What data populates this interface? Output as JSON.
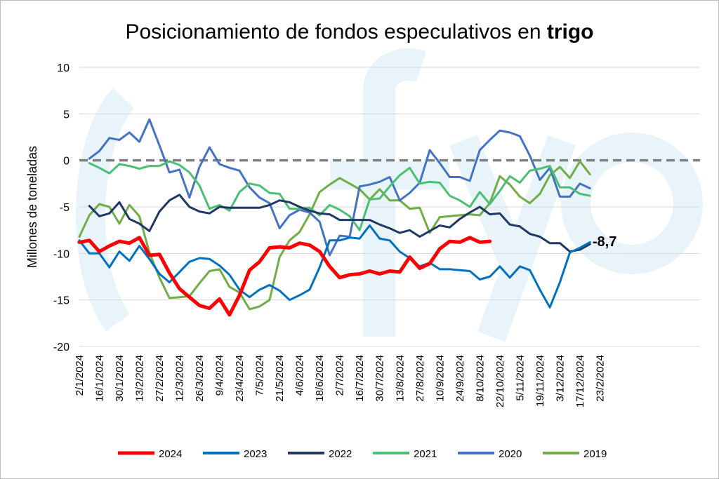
{
  "chart_data": {
    "type": "line",
    "title": "Posicionamiento de fondos especulativos en ",
    "title_bold": "trigo",
    "ylabel": "Millones de toneladas",
    "xlabel": "",
    "ylim": [
      -20,
      10
    ],
    "y_ticks": [
      "10",
      "5",
      "0",
      "-5",
      "-10",
      "-15",
      "-20"
    ],
    "x_ticks": [
      "2/1/2024",
      "16/1/2024",
      "30/1/2024",
      "13/2/2024",
      "27/2/2024",
      "12/3/2024",
      "26/3/2024",
      "9/4/2024",
      "23/4/2024",
      "7/5/2024",
      "21/5/2024",
      "4/6/2024",
      "18/6/2024",
      "2/7/2024",
      "16/7/2024",
      "30/7/2024",
      "13/8/2024",
      "27/8/2024",
      "10/9/2024",
      "24/9/2024",
      "8/10/2024",
      "22/10/2024",
      "5/11/2024",
      "19/11/2024",
      "3/12/2024",
      "17/12/2024",
      "23/2/2024"
    ],
    "x_index_range": [
      0,
      62
    ],
    "zero_line": "dashed",
    "grid": "horizontal",
    "legend_position": "bottom",
    "annotation": {
      "text": "-8,7",
      "x": 50,
      "y": -8.7
    },
    "watermark": "fyo",
    "series": [
      {
        "name": "2024",
        "color": "#ff0000",
        "width": 5,
        "values": [
          -8.8,
          -8.6,
          -9.8,
          -9.2,
          -8.7,
          -8.9,
          -8.3,
          -10.2,
          -10.1,
          -12.1,
          -13.8,
          -14.7,
          -15.6,
          -15.9,
          -14.9,
          -16.6,
          -14.5,
          -11.8,
          -10.9,
          -9.4,
          -9.3,
          -9.4,
          -8.9,
          -9.1,
          -9.8,
          -11.4,
          -12.6,
          -12.3,
          -12.2,
          -11.9,
          -12.2,
          -11.9,
          -12.0,
          -10.4,
          -11.6,
          -11.1,
          -9.5,
          -8.7,
          -8.8,
          -8.3,
          -8.8,
          -8.7
        ]
      },
      {
        "name": "2023",
        "color": "#0070c0",
        "width": 3,
        "values": [
          -8.6,
          -10.0,
          -10.0,
          -11.5,
          -9.8,
          -10.8,
          -9.2,
          -10.6,
          -12.2,
          -13.1,
          -12.0,
          -10.9,
          -10.5,
          -10.6,
          -11.3,
          -12.3,
          -13.9,
          -14.7,
          -13.9,
          -13.4,
          -14.0,
          -15.0,
          -14.5,
          -13.9,
          -11.5,
          -8.6,
          -8.6,
          -8.3,
          -8.4,
          -7.0,
          -8.4,
          -8.6,
          -9.8,
          -10.5,
          -11.4,
          -11.0,
          -11.7,
          -11.7,
          -11.8,
          -11.9,
          -12.8,
          -12.5,
          -11.4,
          -12.6,
          -11.4,
          -11.8,
          -13.9,
          -15.8,
          -13.1,
          -9.9,
          -9.4,
          -8.8
        ]
      },
      {
        "name": "2022",
        "color": "#1f3864",
        "width": 3,
        "values": [
          null,
          -4.9,
          -6.0,
          -5.7,
          -4.5,
          -6.3,
          -6.8,
          -7.6,
          -5.5,
          -4.3,
          -3.7,
          -5.0,
          -5.5,
          -5.7,
          -5.0,
          -5.1,
          -5.1,
          -5.1,
          -5.1,
          -4.8,
          -4.3,
          -4.5,
          -5.0,
          -5.4,
          -5.7,
          -5.8,
          -6.4,
          -6.4,
          -6.4,
          -6.4,
          -6.9,
          -7.3,
          -7.8,
          -7.5,
          -8.2,
          -7.6,
          -7.0,
          -7.2,
          -6.3,
          -5.6,
          -5.0,
          -5.8,
          -5.7,
          -6.9,
          -7.1,
          -7.9,
          -8.2,
          -8.9,
          -8.9,
          -9.8,
          -9.6,
          -9.0
        ]
      },
      {
        "name": "2021",
        "color": "#4bbf73",
        "width": 3,
        "values": [
          null,
          -0.3,
          -0.8,
          -1.4,
          -0.4,
          -0.6,
          -0.9,
          -0.6,
          -0.6,
          -0.1,
          -0.5,
          -1.3,
          -2.7,
          -5.2,
          -4.8,
          -5.4,
          -3.4,
          -2.5,
          -2.7,
          -3.5,
          -3.6,
          -5.2,
          -5.2,
          -5.1,
          -5.9,
          -4.8,
          -5.3,
          -6.0,
          -7.5,
          -4.2,
          -4.1,
          -2.8,
          -1.6,
          -0.8,
          -2.5,
          -2.3,
          -2.4,
          -3.8,
          -4.3,
          -5.0,
          -3.4,
          -4.7,
          -3.3,
          -1.7,
          -2.4,
          -1.1,
          -0.9,
          -0.6,
          -2.9,
          -2.9,
          -3.6,
          -3.8
        ]
      },
      {
        "name": "2020",
        "color": "#4472c4",
        "width": 3,
        "values": [
          null,
          0.2,
          1.0,
          2.4,
          2.2,
          3.0,
          2.0,
          4.4,
          1.6,
          -1.3,
          -1.0,
          -4.0,
          -0.7,
          1.4,
          -0.4,
          -0.8,
          -1.1,
          -2.9,
          -4.0,
          -4.6,
          -7.3,
          -5.9,
          -5.3,
          -5.6,
          -6.6,
          -10.2,
          -8.1,
          -8.2,
          -2.8,
          -2.6,
          -2.3,
          -1.8,
          -4.3,
          -3.5,
          -2.4,
          1.1,
          -0.3,
          -1.8,
          -1.8,
          -2.2,
          1.1,
          2.2,
          3.2,
          3.0,
          2.6,
          0.5,
          -2.1,
          -0.8,
          -3.9,
          -3.9,
          -2.5,
          -3.0
        ]
      },
      {
        "name": "2019",
        "color": "#70ad47",
        "width": 3,
        "values": [
          -8.2,
          -5.9,
          -4.7,
          -5.0,
          -6.8,
          -4.8,
          -6.0,
          -9.9,
          -12.6,
          -14.8,
          -14.7,
          -14.6,
          -13.2,
          -11.9,
          -11.7,
          -13.6,
          -14.2,
          -16.0,
          -15.7,
          -15.0,
          -10.4,
          -8.6,
          -7.7,
          -5.8,
          -3.4,
          -2.6,
          -1.9,
          -2.5,
          -3.1,
          -4.2,
          -3.1,
          -4.3,
          -4.3,
          -5.2,
          -5.1,
          -7.8,
          -6.1,
          -6.0,
          -5.9,
          -5.8,
          -5.9,
          -4.6,
          -1.7,
          -2.6,
          -3.9,
          -4.6,
          -3.6,
          -1.6,
          -0.7,
          -1.9,
          -0.1,
          -1.5
        ]
      }
    ]
  }
}
